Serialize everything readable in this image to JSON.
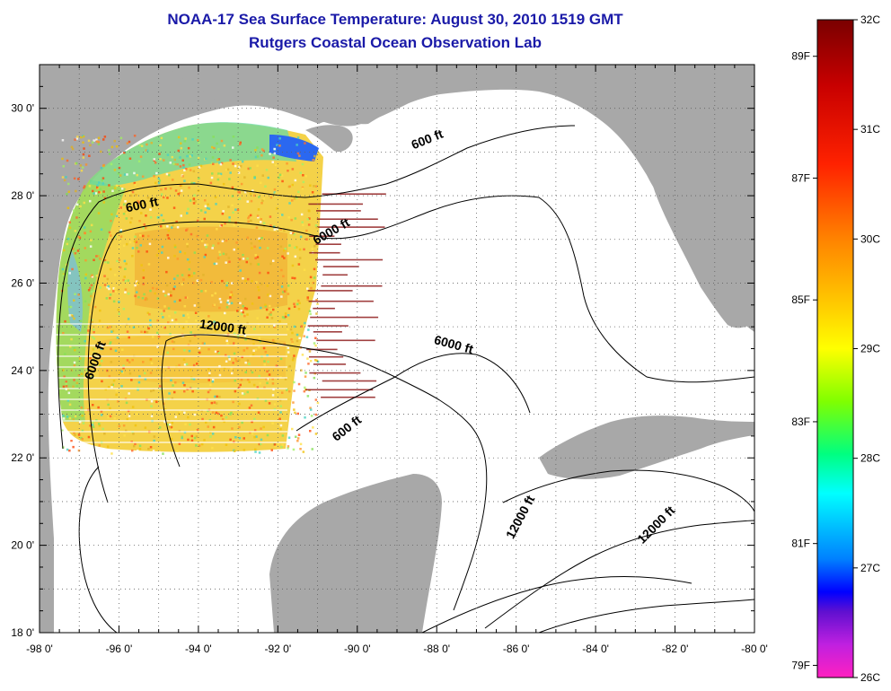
{
  "title": "NOAA-17 Sea Surface Temperature:  August 30, 2010 1519 GMT",
  "subtitle": "Rutgers Coastal Ocean Observation Lab",
  "map": {
    "lon_range": [
      -98,
      -80
    ],
    "lat_range": [
      18,
      31
    ],
    "lon_ticks": [
      "-98 0'",
      "-96 0'",
      "-94 0'",
      "-92 0'",
      "-90 0'",
      "-88 0'",
      "-86 0'",
      "-84 0'",
      "-82 0'",
      "-80 0'"
    ],
    "lat_ticks": [
      "18 0'",
      "20 0'",
      "22 0'",
      "24 0'",
      "26 0'",
      "28 0'",
      "30 0'"
    ],
    "land_color": "#a8a8a8",
    "ocean_color": "#ffffff",
    "grid": "dotted",
    "contour_labels": [
      {
        "text": "600 ft",
        "lon": -95.4,
        "lat": 27.7
      },
      {
        "text": "600 ft",
        "lon": -88.2,
        "lat": 29.2
      },
      {
        "text": "6000 ft",
        "lon": -90.6,
        "lat": 27.1
      },
      {
        "text": "12000 ft",
        "lon": -93.4,
        "lat": 24.9
      },
      {
        "text": "6000 ft",
        "lon": -96.5,
        "lat": 24.2
      },
      {
        "text": "6000 ft",
        "lon": -87.6,
        "lat": 24.5
      },
      {
        "text": "600 ft",
        "lon": -90.2,
        "lat": 22.6
      },
      {
        "text": "12000 ft",
        "lon": -85.8,
        "lat": 20.6
      },
      {
        "text": "12000 ft",
        "lon": -82.4,
        "lat": 20.4
      }
    ]
  },
  "colorbar": {
    "celsius": [
      "32C",
      "31C",
      "30C",
      "29C",
      "28C",
      "27C",
      "26C"
    ],
    "fahrenheit": [
      "89F",
      "87F",
      "85F",
      "83F",
      "81F",
      "79F"
    ],
    "range_c": [
      26,
      32
    ]
  }
}
